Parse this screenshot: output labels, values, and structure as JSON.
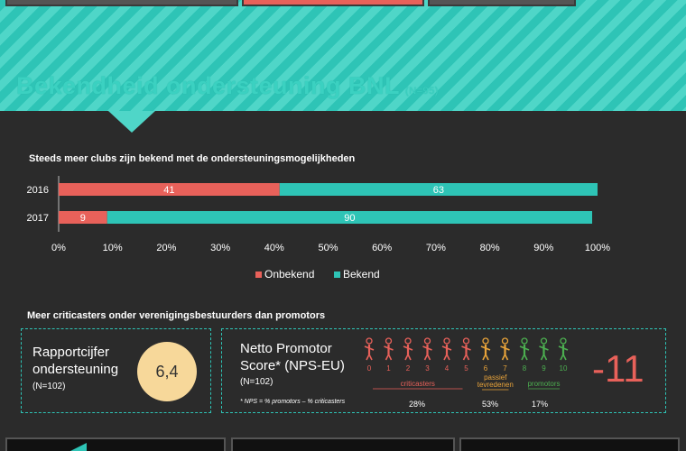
{
  "banner": {
    "title": "Bekendheid ondersteuning BNL",
    "title_suffix": "(N=95)"
  },
  "colors": {
    "teal": "#2ec4b6",
    "salmon": "#e8615a",
    "orange": "#e8a33a",
    "green": "#4caf50",
    "circle": "#f7d89a"
  },
  "chart_data": {
    "type": "bar",
    "orientation": "horizontal",
    "stacked": true,
    "title": "Steeds meer clubs zijn bekend met de ondersteuningsmogelijkheden",
    "categories": [
      "2016",
      "2017"
    ],
    "series": [
      {
        "name": "Onbekend",
        "values": [
          41,
          9
        ],
        "color": "#e8615a"
      },
      {
        "name": "Bekend",
        "values": [
          63,
          90
        ],
        "color": "#2ec4b6"
      }
    ],
    "xlim": [
      0,
      100
    ],
    "x_ticks": [
      "0%",
      "10%",
      "20%",
      "30%",
      "40%",
      "50%",
      "60%",
      "70%",
      "80%",
      "90%",
      "100%"
    ],
    "legend_position": "bottom",
    "grid": false
  },
  "section2": {
    "title": "Meer criticasters onder verenigingsbestuurders dan promotors",
    "rapport": {
      "label_line1": "Rapportcijfer",
      "label_line2": "ondersteuning",
      "n": "(N=102)",
      "score": "6,4"
    },
    "nps": {
      "label_line1": "Netto Promotor",
      "label_line2": "Score* (NPS-EU)",
      "n": "(N=102)",
      "note": "* NPS = % promotors – % criticasters",
      "scale": [
        "0",
        "1",
        "2",
        "3",
        "4",
        "5",
        "6",
        "7",
        "8",
        "9",
        "10"
      ],
      "groups": [
        {
          "label": "criticasters",
          "percent": "28%",
          "from": 0,
          "to": 5,
          "color": "#e8615a"
        },
        {
          "label_line1": "passief",
          "label_line2": "tevredenen",
          "percent": "53%",
          "from": 6,
          "to": 7,
          "color": "#e8a33a"
        },
        {
          "label": "promotors",
          "percent": "17%",
          "from": 8,
          "to": 10,
          "color": "#4caf50"
        }
      ],
      "value": "-11"
    }
  }
}
